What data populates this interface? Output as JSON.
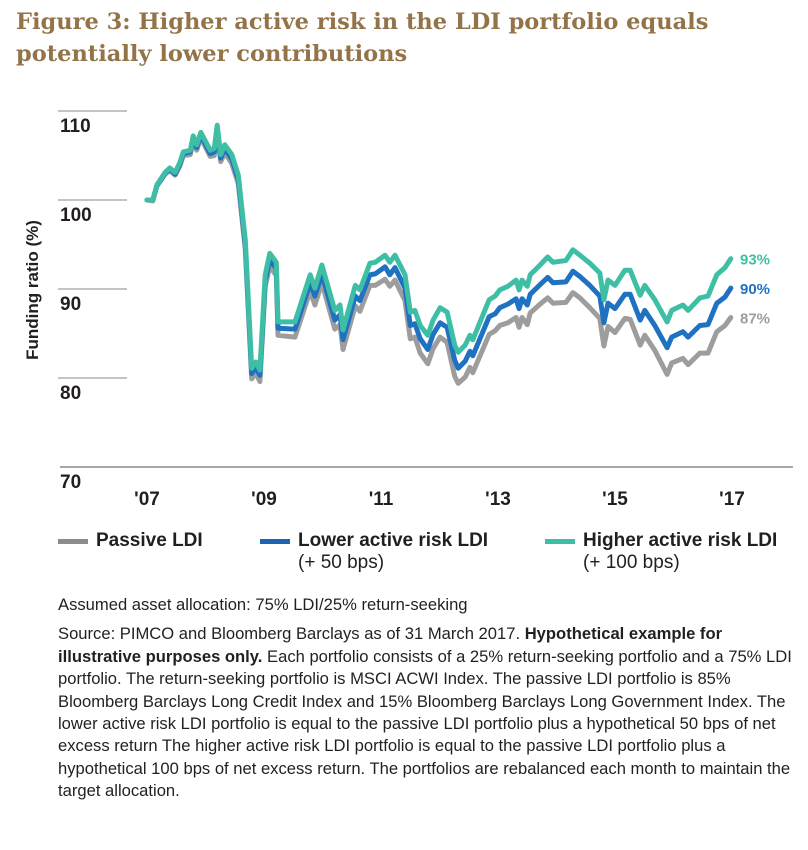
{
  "title": "Figure 3: Higher active risk in the LDI portfolio equals potentially lower contributions",
  "chart_data": {
    "type": "line",
    "title": "Figure 3: Higher active risk in the LDI portfolio equals potentially lower contributions",
    "ylabel": "Funding ratio (%)",
    "xlabel": "",
    "ylim": [
      70,
      110
    ],
    "yticks": [
      110,
      100,
      90,
      80,
      70
    ],
    "xticks": [
      {
        "value": 2007,
        "label": "'07"
      },
      {
        "value": 2009,
        "label": "'09"
      },
      {
        "value": 2011,
        "label": "'11"
      },
      {
        "value": 2013,
        "label": "'13"
      },
      {
        "value": 2015,
        "label": "'15"
      },
      {
        "value": 2017,
        "label": "'17"
      }
    ],
    "xlim": [
      2007,
      2018
    ],
    "grid": false,
    "legend_placement": "bottom",
    "x": [
      2007.0,
      2007.1,
      2007.17,
      2007.31,
      2007.39,
      2007.48,
      2007.56,
      2007.62,
      2007.74,
      2007.79,
      2007.85,
      2007.92,
      2008.08,
      2008.15,
      2008.2,
      2008.26,
      2008.33,
      2008.45,
      2008.56,
      2008.68,
      2008.79,
      2008.86,
      2008.93,
      2009.02,
      2009.1,
      2009.21,
      2009.24,
      2009.53,
      2009.79,
      2009.87,
      2009.99,
      2010.21,
      2010.3,
      2010.35,
      2010.56,
      2010.64,
      2010.81,
      2010.9,
      2011.07,
      2011.15,
      2011.24,
      2011.41,
      2011.5,
      2011.58,
      2011.67,
      2011.8,
      2011.89,
      2012.01,
      2012.13,
      2012.26,
      2012.32,
      2012.44,
      2012.52,
      2012.57,
      2012.85,
      2012.95,
      2013.03,
      2013.17,
      2013.31,
      2013.36,
      2013.41,
      2013.5,
      2013.55,
      2013.72,
      2013.85,
      2013.94,
      2014.16,
      2014.28,
      2014.4,
      2014.57,
      2014.74,
      2014.81,
      2014.88,
      2015.0,
      2015.17,
      2015.26,
      2015.43,
      2015.51,
      2015.68,
      2015.89,
      2015.97,
      2016.16,
      2016.25,
      2016.45,
      2016.59,
      2016.74,
      2016.88,
      2016.98
    ],
    "series": [
      {
        "name": "Passive LDI",
        "color": "#9d9d9d",
        "end_label": "87%",
        "values": [
          100.0,
          99.9,
          101.6,
          102.9,
          103.3,
          102.8,
          103.8,
          105.0,
          105.1,
          106.7,
          105.6,
          107.0,
          104.9,
          105.0,
          107.6,
          104.3,
          105.3,
          104.1,
          101.8,
          94.4,
          79.9,
          80.6,
          79.6,
          90.3,
          92.6,
          91.5,
          84.8,
          84.6,
          89.8,
          88.2,
          90.7,
          85.5,
          86.0,
          83.2,
          88.1,
          87.5,
          90.4,
          90.4,
          91.1,
          90.3,
          91.0,
          88.7,
          84.4,
          84.6,
          82.8,
          81.6,
          83.3,
          84.6,
          84.0,
          80.2,
          79.4,
          80.1,
          81.2,
          80.6,
          84.9,
          85.3,
          85.9,
          86.2,
          86.8,
          85.7,
          86.8,
          86.0,
          87.3,
          88.3,
          89.0,
          88.4,
          88.5,
          89.6,
          89.0,
          87.9,
          86.7,
          83.6,
          85.8,
          85.1,
          86.7,
          86.6,
          83.7,
          84.8,
          83.1,
          80.4,
          81.7,
          82.2,
          81.5,
          82.8,
          82.8,
          85.2,
          85.9,
          86.8
        ]
      },
      {
        "name": "Lower active risk LDI (+ 50 bps)",
        "color": "#1f72c2",
        "end_label": "90%",
        "values": [
          100.0,
          100.0,
          101.6,
          103.0,
          103.5,
          102.9,
          104.0,
          105.2,
          105.4,
          106.9,
          105.9,
          107.3,
          105.2,
          105.4,
          108.0,
          104.7,
          105.8,
          104.6,
          102.3,
          95.0,
          80.5,
          81.2,
          80.3,
          90.9,
          93.3,
          92.3,
          85.6,
          85.5,
          90.7,
          89.2,
          91.7,
          86.5,
          87.1,
          84.3,
          89.2,
          88.7,
          91.6,
          91.7,
          92.5,
          91.6,
          92.4,
          90.1,
          85.9,
          86.1,
          84.4,
          83.2,
          84.9,
          86.2,
          85.7,
          82.0,
          81.1,
          81.9,
          83.0,
          82.5,
          86.9,
          87.2,
          87.9,
          88.3,
          88.9,
          87.8,
          88.9,
          88.2,
          89.4,
          90.5,
          91.3,
          90.7,
          90.8,
          92.0,
          91.4,
          90.4,
          89.2,
          86.2,
          88.4,
          87.8,
          89.4,
          89.4,
          86.5,
          87.6,
          85.9,
          83.4,
          84.6,
          85.2,
          84.6,
          85.9,
          86.0,
          88.4,
          89.1,
          90.1
        ]
      },
      {
        "name": "Higher active risk LDI (+ 100 bps)",
        "color": "#3ebfa5",
        "end_label": "93%",
        "values": [
          100.0,
          100.0,
          101.7,
          103.1,
          103.6,
          103.1,
          104.2,
          105.4,
          105.6,
          107.2,
          106.2,
          107.6,
          105.6,
          105.8,
          108.4,
          105.1,
          106.2,
          105.1,
          102.8,
          95.5,
          81.1,
          81.8,
          80.9,
          91.6,
          94.0,
          93.0,
          86.3,
          86.3,
          91.6,
          90.1,
          92.7,
          87.6,
          88.2,
          85.4,
          90.4,
          89.9,
          92.9,
          93.0,
          93.8,
          93.0,
          93.8,
          91.6,
          87.4,
          87.6,
          85.9,
          84.8,
          86.5,
          87.9,
          87.4,
          83.7,
          82.9,
          83.7,
          84.8,
          84.3,
          88.8,
          89.2,
          89.9,
          90.3,
          91.0,
          89.9,
          91.0,
          90.3,
          91.6,
          92.7,
          93.6,
          93.0,
          93.2,
          94.4,
          93.8,
          92.9,
          91.8,
          88.8,
          91.0,
          90.4,
          92.1,
          92.1,
          89.3,
          90.4,
          88.8,
          86.3,
          87.6,
          88.2,
          87.6,
          89.0,
          89.2,
          91.6,
          92.4,
          93.4
        ]
      }
    ]
  },
  "legend": [
    {
      "line1": "Passive LDI",
      "line2": ""
    },
    {
      "line1": "Lower active risk LDI",
      "line2": "(+ 50 bps)"
    },
    {
      "line1": "Higher active risk LDI",
      "line2": "(+ 100 bps)"
    }
  ],
  "notes": {
    "allocation": "Assumed asset allocation: 75% LDI/25% return-seeking",
    "source_prefix": "Source: PIMCO and Bloomberg Barclays as of 31 March 2017. ",
    "source_bold": "Hypothetical example for illustrative purposes only.",
    "source_rest": " Each portfolio consists of a 25% return-seeking portfolio and a 75% LDI portfolio. The return-seeking portfolio is MSCI ACWI Index. The passive LDI portfolio is 85% Bloomberg Barclays Long Credit Index and 15% Bloomberg Barclays Long Government Index. The lower active risk LDI portfolio is equal to the passive LDI portfolio plus a hypothetical 50 bps of net excess return The higher active risk LDI portfolio is equal to the passive LDI portfolio plus a hypothetical 100 bps of net excess return. The portfolios are rebalanced each month to maintain the target allocation."
  }
}
